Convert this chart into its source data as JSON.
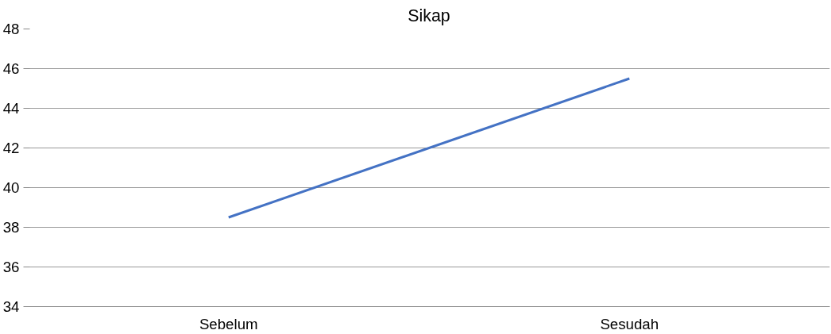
{
  "chart_data": {
    "type": "line",
    "title": "Sikap",
    "categories": [
      "Sebelum",
      "Sesudah"
    ],
    "series": [
      {
        "color": "#4472c4",
        "values": [
          38.5,
          45.5
        ]
      }
    ],
    "ylim": [
      34,
      48
    ],
    "yticks": [
      34,
      36,
      38,
      40,
      42,
      44,
      46,
      48
    ],
    "grid": "y",
    "marker": "none",
    "line_style": "solid"
  }
}
